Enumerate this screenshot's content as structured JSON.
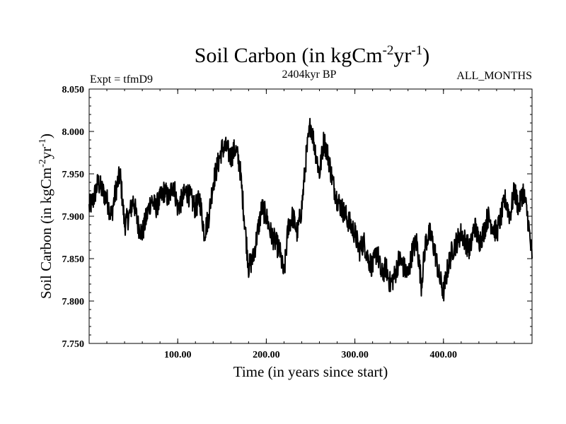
{
  "chart_data": {
    "type": "line",
    "title": {
      "text": "Soil Carbon (in kgCm",
      "exp1": "-2",
      "mid": "yr",
      "exp2": "-1",
      "end": ")"
    },
    "left_subtitle": "Expt = tfmD9",
    "center_subtitle": "2404kyr BP",
    "right_subtitle": "ALL_MONTHS",
    "xlabel": "Time (in years since start)",
    "ylabel": {
      "text": "Soil Carbon (in kgCm",
      "exp1": "-2",
      "mid": "yr",
      "exp2": "-1",
      "end": ")"
    },
    "xlim": [
      0,
      500
    ],
    "ylim": [
      7.75,
      8.05
    ],
    "x_ticks": [
      100,
      200,
      300,
      400
    ],
    "x_tick_labels": [
      "100.00",
      "200.00",
      "300.00",
      "400.00"
    ],
    "y_ticks": [
      7.75,
      7.8,
      7.85,
      7.9,
      7.95,
      8.0,
      8.05
    ],
    "y_tick_labels": [
      "7.750",
      "7.800",
      "7.850",
      "7.900",
      "7.950",
      "8.000",
      "8.050"
    ],
    "grid": false,
    "line_color": "#000000",
    "series": [
      {
        "name": "Soil Carbon",
        "x": [
          0,
          5,
          10,
          15,
          20,
          25,
          30,
          35,
          40,
          45,
          50,
          55,
          60,
          65,
          70,
          75,
          80,
          85,
          90,
          95,
          100,
          105,
          110,
          115,
          120,
          125,
          130,
          135,
          140,
          145,
          150,
          155,
          160,
          165,
          170,
          175,
          180,
          185,
          190,
          195,
          200,
          205,
          210,
          215,
          220,
          225,
          230,
          235,
          240,
          245,
          250,
          255,
          260,
          265,
          270,
          275,
          280,
          285,
          290,
          295,
          300,
          305,
          310,
          315,
          320,
          325,
          330,
          335,
          340,
          345,
          350,
          355,
          360,
          365,
          370,
          375,
          380,
          385,
          390,
          395,
          400,
          405,
          410,
          415,
          420,
          425,
          430,
          435,
          440,
          445,
          450,
          455,
          460,
          465,
          470,
          475,
          480,
          485,
          490,
          495,
          500
        ],
        "values": [
          7.91,
          7.92,
          7.94,
          7.93,
          7.92,
          7.9,
          7.93,
          7.95,
          7.89,
          7.9,
          7.92,
          7.89,
          7.88,
          7.9,
          7.92,
          7.91,
          7.92,
          7.93,
          7.92,
          7.94,
          7.91,
          7.92,
          7.93,
          7.92,
          7.91,
          7.92,
          7.88,
          7.9,
          7.94,
          7.96,
          7.98,
          7.98,
          7.97,
          7.98,
          7.96,
          7.9,
          7.84,
          7.85,
          7.88,
          7.91,
          7.9,
          7.88,
          7.87,
          7.86,
          7.83,
          7.89,
          7.9,
          7.88,
          7.91,
          7.97,
          8.01,
          7.98,
          7.95,
          7.99,
          7.97,
          7.94,
          7.92,
          7.91,
          7.9,
          7.89,
          7.88,
          7.86,
          7.87,
          7.85,
          7.84,
          7.86,
          7.83,
          7.84,
          7.82,
          7.83,
          7.85,
          7.84,
          7.83,
          7.86,
          7.87,
          7.82,
          7.87,
          7.88,
          7.86,
          7.83,
          7.81,
          7.84,
          7.86,
          7.87,
          7.88,
          7.87,
          7.86,
          7.89,
          7.87,
          7.88,
          7.9,
          7.89,
          7.88,
          7.9,
          7.92,
          7.9,
          7.93,
          7.91,
          7.93,
          7.9,
          7.85
        ]
      }
    ]
  }
}
